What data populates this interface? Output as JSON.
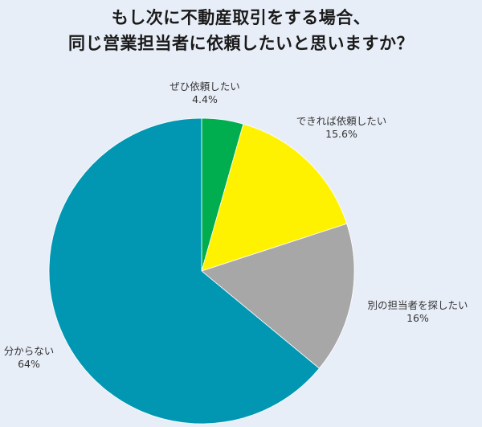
{
  "title": {
    "line1": "もし次に不動産取引をする場合、",
    "line2": "同じ営業担当者に依頼したいと思いますか？"
  },
  "chart_data": {
    "type": "pie",
    "title": "もし次に不動産取引をする場合、同じ営業担当者に依頼したいと思いますか？",
    "start_angle": "12 o'clock",
    "direction": "clockwise",
    "categories": [
      "ぜひ依頼したい",
      "できれば依頼したい",
      "別の担当者を探したい",
      "分からない"
    ],
    "values": [
      4.4,
      15.6,
      16,
      64
    ],
    "unit": "%",
    "colors": [
      "#00ad4f",
      "#fff200",
      "#a7a7a7",
      "#0197b2"
    ],
    "legend": "none (direct labels)"
  },
  "labels": [
    {
      "name": "ぜひ依頼したい",
      "value": "4.4%"
    },
    {
      "name": "できれば依頼したい",
      "value": "15.6%"
    },
    {
      "name": "別の担当者を探したい",
      "value": "16%"
    },
    {
      "name": "分からない",
      "value": "64%"
    }
  ],
  "background": "#e8eef8"
}
